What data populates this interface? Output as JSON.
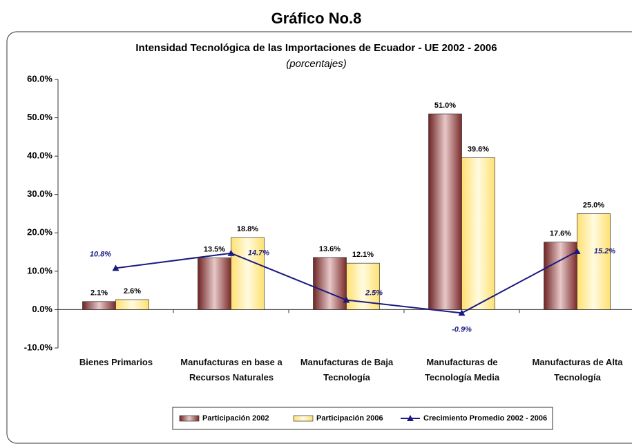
{
  "header": "Gráfico No.8",
  "chart_data": {
    "type": "bar",
    "title": "Intensidad Tecnológica de las Importaciones de Ecuador - UE 2002 - 2006",
    "subtitle": "(porcentajes)",
    "categories": [
      "Bienes Primarios",
      "Manufacturas en base a Recursos Naturales",
      "Manufacturas de Baja Tecnología",
      "Manufacturas de Tecnología Media",
      "Manufacturas de Alta Tecnología"
    ],
    "series": [
      {
        "name": "Participación 2002",
        "type": "bar",
        "color": "#8b3a3a",
        "values": [
          2.1,
          13.5,
          13.6,
          51.0,
          17.6
        ],
        "value_labels": [
          "2.1%",
          "13.5%",
          "13.6%",
          "51.0%",
          "17.6%"
        ]
      },
      {
        "name": "Participación 2006",
        "type": "bar",
        "color": "#ffe98a",
        "values": [
          2.6,
          18.8,
          12.1,
          39.6,
          25.0
        ],
        "value_labels": [
          "2.6%",
          "18.8%",
          "12.1%",
          "39.6%",
          "25.0%"
        ]
      },
      {
        "name": "Crecimiento Promedio 2002 - 2006",
        "type": "line",
        "color": "#1a1a80",
        "values": [
          10.8,
          14.7,
          2.5,
          -0.9,
          15.2
        ],
        "value_labels": [
          "10.8%",
          "14.7%",
          "2.5%",
          "-0.9%",
          "15.2%"
        ]
      }
    ],
    "ylim": [
      -10,
      60
    ],
    "yticks": [
      {
        "value": -10,
        "label": "-10.0%"
      },
      {
        "value": 0,
        "label": "0.0%"
      },
      {
        "value": 10,
        "label": "10.0%"
      },
      {
        "value": 20,
        "label": "20.0%"
      },
      {
        "value": 30,
        "label": "30.0%"
      },
      {
        "value": 40,
        "label": "40.0%"
      },
      {
        "value": 50,
        "label": "50.0%"
      },
      {
        "value": 60,
        "label": "60.0%"
      }
    ],
    "grid": false,
    "legend": "bottom"
  }
}
